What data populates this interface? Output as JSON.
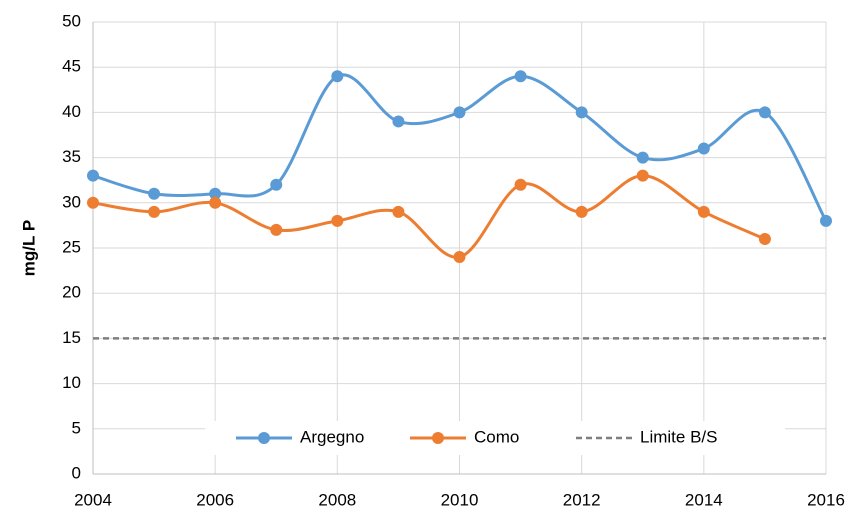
{
  "chart_data": {
    "type": "line",
    "ylabel": "mg/L P",
    "x": [
      2004,
      2005,
      2006,
      2007,
      2008,
      2009,
      2010,
      2011,
      2012,
      2013,
      2014,
      2015,
      2016
    ],
    "series": [
      {
        "name": "Argegno",
        "color": "#5b9bd5",
        "style": "smooth",
        "marker": true,
        "values": [
          33,
          31,
          31,
          32,
          44,
          39,
          40,
          44,
          40,
          35,
          36,
          40,
          28
        ]
      },
      {
        "name": "Como",
        "color": "#ed7d31",
        "style": "smooth",
        "marker": true,
        "values": [
          30,
          29,
          30,
          27,
          28,
          29,
          24,
          32,
          29,
          33,
          29,
          26,
          null
        ]
      },
      {
        "name": "Limite B/S",
        "color": "#7f7f7f",
        "style": "dashed",
        "marker": false,
        "values": [
          15,
          15,
          15,
          15,
          15,
          15,
          15,
          15,
          15,
          15,
          15,
          15,
          15
        ]
      }
    ],
    "xlim": [
      2004,
      2016
    ],
    "xticks": [
      2004,
      2006,
      2008,
      2010,
      2012,
      2014,
      2016
    ],
    "ylim": [
      0,
      50
    ],
    "yticks": [
      0,
      5,
      10,
      15,
      20,
      25,
      30,
      35,
      40,
      45,
      50
    ],
    "grid": true,
    "legend": "bottom"
  }
}
